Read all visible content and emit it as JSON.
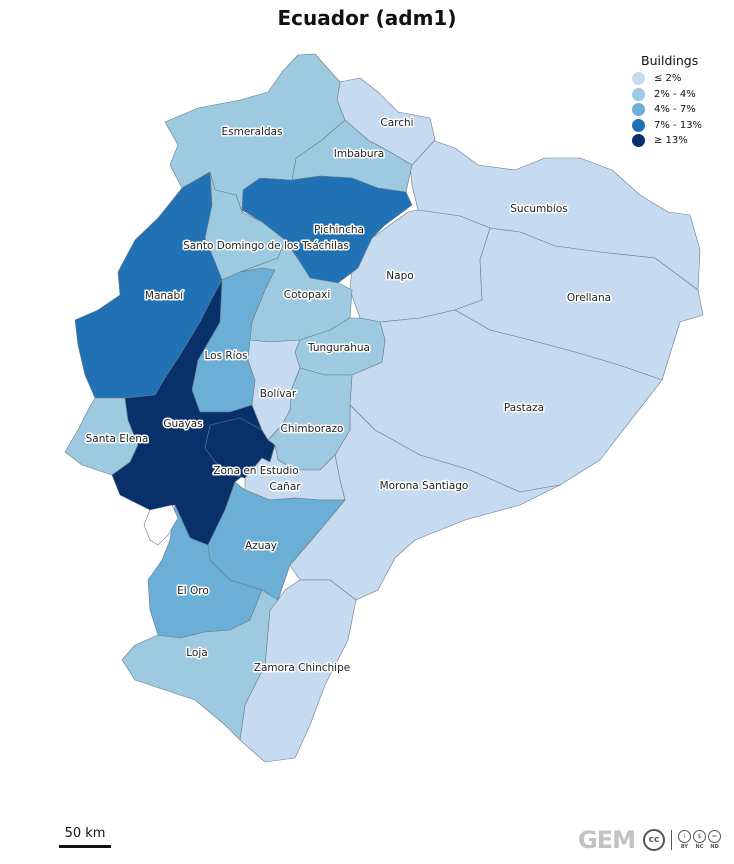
{
  "title": "Ecuador (adm1)",
  "legend": {
    "title": "Buildings",
    "items": [
      {
        "label": "≤ 2%",
        "color": "#c6dbef"
      },
      {
        "label": "2% - 4%",
        "color": "#9ecae1"
      },
      {
        "label": "4% - 7%",
        "color": "#6baed6"
      },
      {
        "label": "7% - 13%",
        "color": "#2171b5"
      },
      {
        "label": "≥ 13%",
        "color": "#08306b"
      }
    ]
  },
  "provinces": [
    {
      "name": "Carchi",
      "class": 0
    },
    {
      "name": "Esmeraldas",
      "class": 1
    },
    {
      "name": "Imbabura",
      "class": 1
    },
    {
      "name": "Sucumbíos",
      "class": 0
    },
    {
      "name": "Pichincha",
      "class": 3
    },
    {
      "name": "Santo Domingo de los Tsáchilas",
      "class": 1
    },
    {
      "name": "Napo",
      "class": 0
    },
    {
      "name": "Orellana",
      "class": 0
    },
    {
      "name": "Manabí",
      "class": 3
    },
    {
      "name": "Cotopaxi",
      "class": 1
    },
    {
      "name": "Tungurahua",
      "class": 1
    },
    {
      "name": "Los Ríos",
      "class": 2
    },
    {
      "name": "Bolívar",
      "class": 0
    },
    {
      "name": "Pastaza",
      "class": 0
    },
    {
      "name": "Guayas",
      "class": 4
    },
    {
      "name": "Chimborazo",
      "class": 1
    },
    {
      "name": "Santa Elena",
      "class": 1
    },
    {
      "name": "Zona en Estudio",
      "class": 4
    },
    {
      "name": "Cañar",
      "class": 0
    },
    {
      "name": "Morona Santiago",
      "class": 0
    },
    {
      "name": "Azuay",
      "class": 2
    },
    {
      "name": "El Oro",
      "class": 2
    },
    {
      "name": "Loja",
      "class": 1
    },
    {
      "name": "Zamora Chinchipe",
      "class": 0
    }
  ],
  "scale_bar": {
    "label": "50 km"
  },
  "credits": {
    "logo_text": "GEM",
    "license_main": "cc",
    "license_parts": [
      {
        "symbol": "i",
        "text": "BY"
      },
      {
        "symbol": "$",
        "text": "NC"
      },
      {
        "symbol": "=",
        "text": "ND"
      }
    ]
  }
}
